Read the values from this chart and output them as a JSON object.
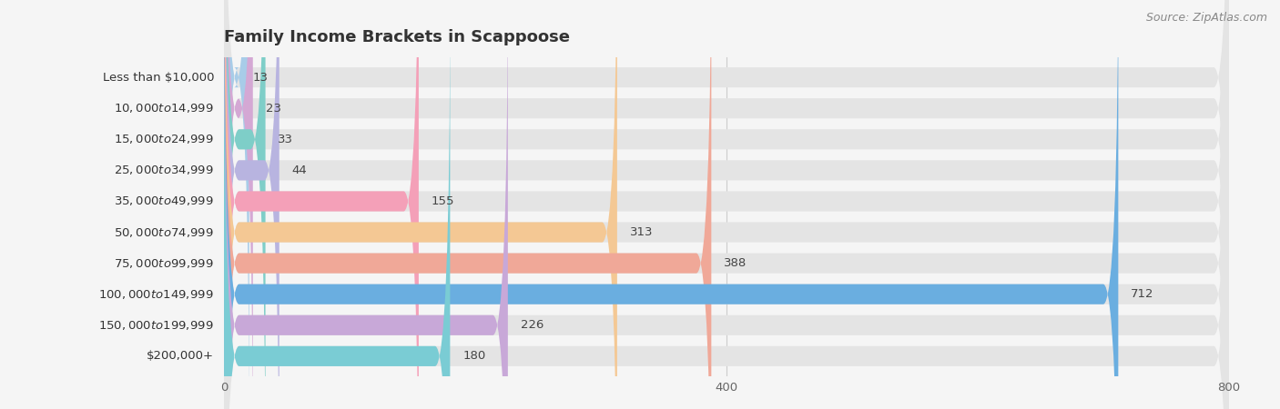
{
  "title": "Family Income Brackets in Scappoose",
  "source": "Source: ZipAtlas.com",
  "categories": [
    "Less than $10,000",
    "$10,000 to $14,999",
    "$15,000 to $24,999",
    "$25,000 to $34,999",
    "$35,000 to $49,999",
    "$50,000 to $74,999",
    "$75,000 to $99,999",
    "$100,000 to $149,999",
    "$150,000 to $199,999",
    "$200,000+"
  ],
  "values": [
    13,
    23,
    33,
    44,
    155,
    313,
    388,
    712,
    226,
    180
  ],
  "bar_colors": [
    "#a8cce8",
    "#d4a8d4",
    "#7ecec8",
    "#b8b4e0",
    "#f4a0b8",
    "#f4c894",
    "#f0a898",
    "#6aaee0",
    "#c8a8d8",
    "#7accd4"
  ],
  "xlim_max": 800,
  "xticks": [
    0,
    400,
    800
  ],
  "bg_color": "#f5f5f5",
  "bar_bg_color": "#e4e4e4",
  "title_fontsize": 13,
  "label_fontsize": 9.5,
  "value_fontsize": 9.5,
  "tick_fontsize": 9.5
}
